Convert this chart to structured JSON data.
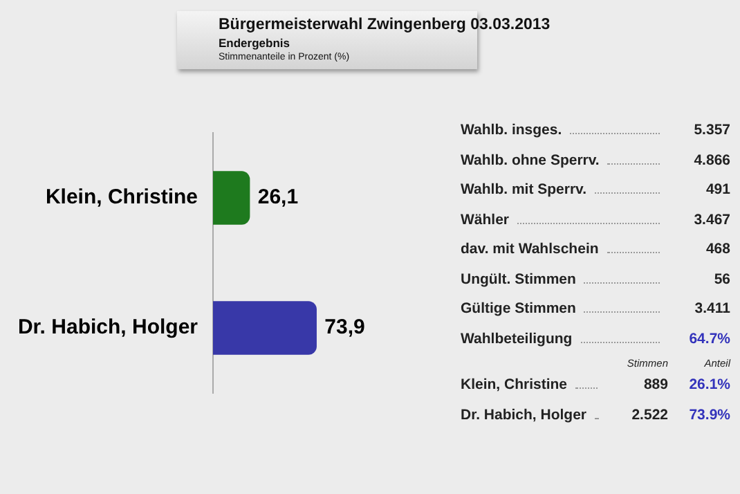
{
  "chart_data": [
    {
      "type": "bar",
      "title": "Bürgermeisterwahl Zwingenberg 03.03.2013",
      "subtitle": "Endergebnis",
      "annotations": [
        "Stimmenanteile in Prozent (%)"
      ],
      "orientation": "horizontal",
      "categories": [
        "Klein, Christine",
        "Dr. Habich, Holger"
      ],
      "values": [
        26.1,
        73.9
      ],
      "value_labels": [
        "26,1",
        "73,9"
      ],
      "colors": [
        "#1e7a1e",
        "#3838a8"
      ],
      "tick_labels": "y"
    },
    {
      "type": "other",
      "categories": [
        "Wahlb. insges.",
        "Wahlb. ohne Sperrv.",
        "Wahlb. mit Sperrv.",
        "Wähler",
        "dav. mit Wahlschein",
        "Ungült. Stimmen",
        "Gültige Stimmen",
        "Wahlbeteiligung"
      ],
      "value_labels": [
        "5.357",
        "4.866",
        "491",
        "3.467",
        "468",
        "56",
        "3.411",
        "64.7%"
      ],
      "colors": [
        "#222222",
        "#222222",
        "#222222",
        "#222222",
        "#222222",
        "#222222",
        "#222222",
        "#3333bb"
      ]
    },
    {
      "type": "other",
      "categories": [
        "Stimmen",
        "Anteil"
      ],
      "y_categories": [
        "Klein, Christine",
        "Dr. Habich, Holger"
      ],
      "colors": [
        "#222222",
        "#3333bb"
      ],
      "cell_labels": [
        [
          "889",
          "26.1%"
        ],
        [
          "2.522",
          "73.9%"
        ]
      ]
    }
  ]
}
